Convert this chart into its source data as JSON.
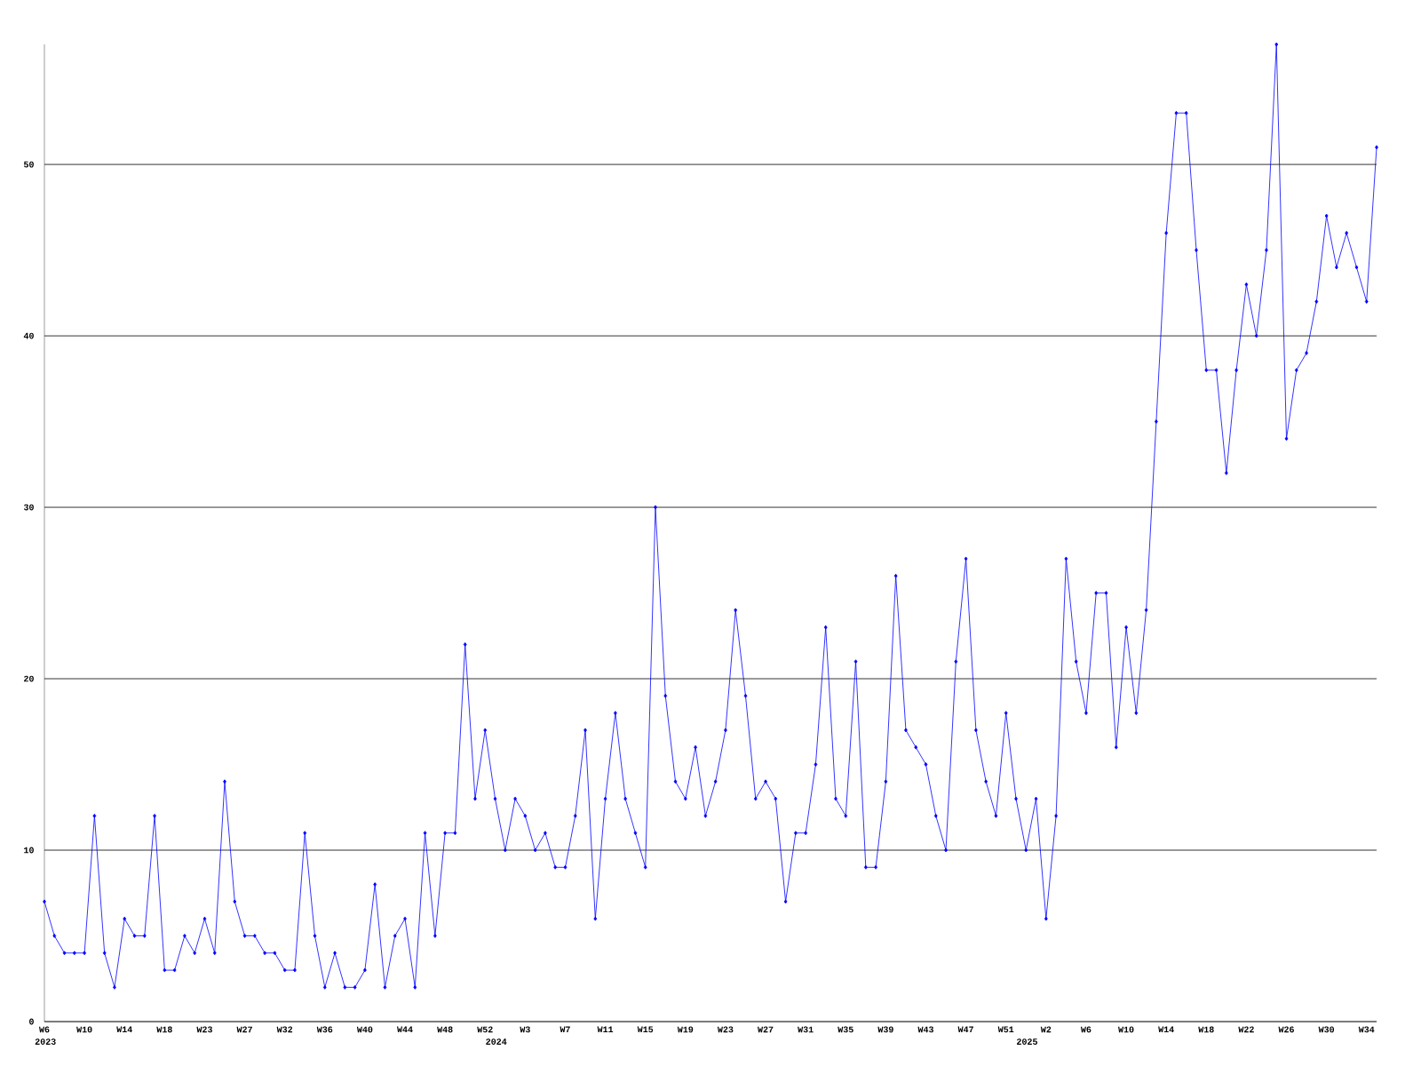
{
  "chart_data": {
    "type": "line",
    "categories": [
      "W6",
      null,
      null,
      null,
      "W10",
      null,
      null,
      null,
      "W14",
      null,
      null,
      null,
      "W18",
      null,
      null,
      null,
      "W23",
      null,
      null,
      null,
      "W27",
      null,
      null,
      null,
      "W32",
      null,
      null,
      null,
      "W36",
      null,
      null,
      null,
      "W40",
      null,
      null,
      null,
      "W44",
      null,
      null,
      null,
      "W48",
      null,
      null,
      null,
      "W52",
      null,
      null,
      null,
      "W3",
      null,
      null,
      null,
      "W7",
      null,
      null,
      null,
      "W11",
      null,
      null,
      null,
      "W15",
      null,
      null,
      null,
      "W19",
      null,
      null,
      null,
      "W23",
      null,
      null,
      null,
      "W27",
      null,
      null,
      null,
      "W31",
      null,
      null,
      null,
      "W35",
      null,
      null,
      null,
      "W39",
      null,
      null,
      null,
      "W43",
      null,
      null,
      null,
      "W47",
      null,
      null,
      null,
      "W51",
      null,
      null,
      null,
      "W2",
      null,
      null,
      null,
      "W6",
      null,
      null,
      null,
      "W10",
      null,
      null,
      null,
      "W14",
      null,
      null,
      null,
      "W18",
      null,
      null,
      null,
      "W22",
      null,
      null,
      null,
      "W26",
      null,
      null,
      null,
      "W30",
      null,
      null,
      null,
      "W34",
      null
    ],
    "values": [
      7,
      5,
      4,
      4,
      4,
      12,
      4,
      2,
      6,
      5,
      5,
      12,
      3,
      3,
      5,
      4,
      6,
      4,
      14,
      7,
      5,
      5,
      4,
      4,
      3,
      3,
      11,
      5,
      2,
      4,
      2,
      2,
      3,
      8,
      2,
      5,
      6,
      2,
      11,
      5,
      11,
      11,
      22,
      13,
      17,
      13,
      10,
      13,
      12,
      10,
      11,
      9,
      9,
      12,
      17,
      6,
      13,
      18,
      13,
      11,
      9,
      30,
      19,
      14,
      13,
      16,
      12,
      14,
      17,
      24,
      19,
      13,
      14,
      13,
      7,
      11,
      11,
      15,
      23,
      13,
      12,
      21,
      9,
      9,
      14,
      26,
      17,
      16,
      15,
      12,
      10,
      21,
      27,
      17,
      14,
      12,
      18,
      13,
      10,
      13,
      6,
      12,
      27,
      21,
      18,
      25,
      25,
      16,
      23,
      18,
      24,
      35,
      46,
      53,
      53,
      45,
      38,
      38,
      32,
      38,
      43,
      40,
      45,
      57,
      34,
      38,
      39,
      42,
      47,
      44,
      46,
      44,
      42,
      51
    ],
    "color": "#0000ff",
    "marker": "diamond",
    "line_style": "solid",
    "grid": "y",
    "ylim": [
      0,
      57
    ],
    "yticks": [
      0,
      10,
      20,
      30,
      40,
      50
    ],
    "annotations": [
      "2023",
      "2024",
      "2025"
    ]
  }
}
